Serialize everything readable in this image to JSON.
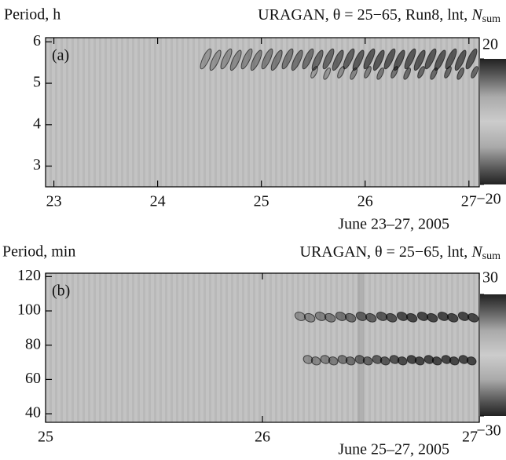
{
  "chart_data": [
    {
      "type": "heatmap",
      "panel_label": "(a)",
      "ylabel": "Period, h",
      "title": "URAGAN, θ = 25−65, Run8, lnt, ",
      "title_symbol": "N",
      "title_subscript": "sum",
      "xlabel": "June 23–27, 2005",
      "xlim": [
        22.92,
        27.1
      ],
      "xticks": [
        23,
        24,
        25,
        26,
        27
      ],
      "ylim": [
        2.5,
        6.1
      ],
      "yticks": [
        3,
        4,
        5,
        6
      ],
      "colorbar": {
        "lim": [
          -20,
          20
        ],
        "ticks": [
          20,
          {
            "value": -20,
            "label": "−20"
          }
        ]
      }
    },
    {
      "type": "heatmap",
      "panel_label": "(b)",
      "ylabel": "Period, min",
      "title": "URAGAN, θ = 25−65, lnt, ",
      "title_symbol": "N",
      "title_subscript": "sum",
      "xlabel": "June 25–27, 2005",
      "xlim": [
        25,
        27
      ],
      "xticks": [
        25,
        26,
        27
      ],
      "ylim": [
        35,
        122
      ],
      "yticks": [
        40,
        60,
        80,
        100,
        120
      ],
      "colorbar": {
        "lim": [
          -30,
          30
        ],
        "ticks": [
          30,
          {
            "value": -30,
            "label": "−30"
          }
        ]
      }
    }
  ]
}
